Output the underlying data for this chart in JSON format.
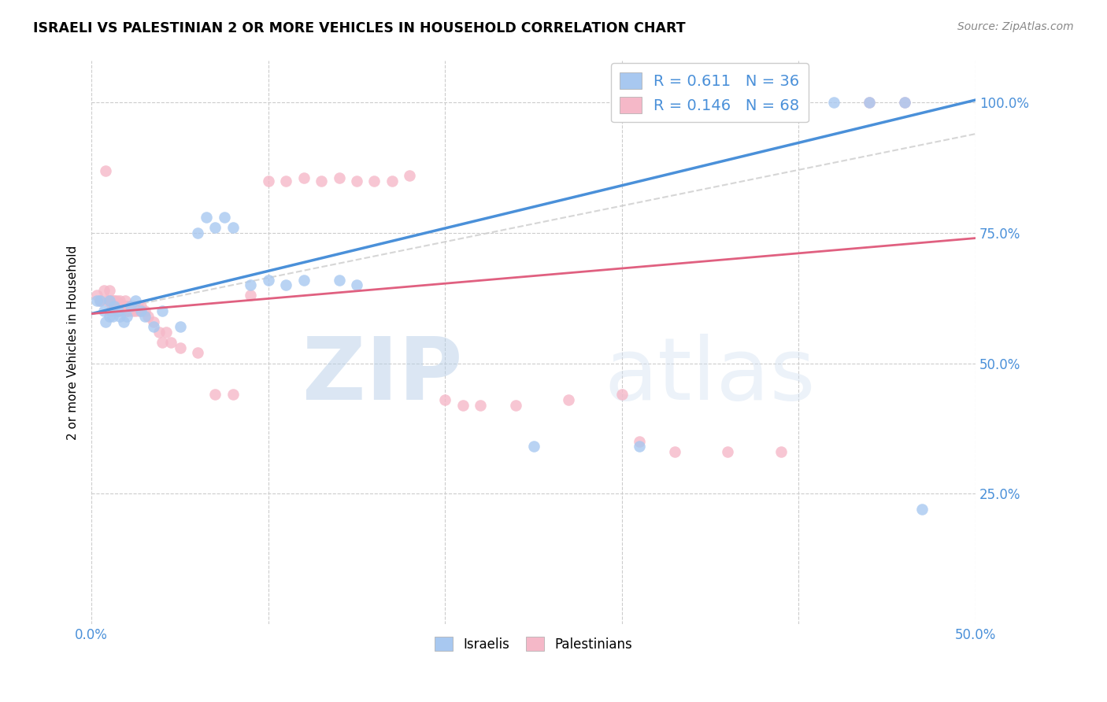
{
  "title": "ISRAELI VS PALESTINIAN 2 OR MORE VEHICLES IN HOUSEHOLD CORRELATION CHART",
  "source": "Source: ZipAtlas.com",
  "ylabel": "2 or more Vehicles in Household",
  "xlim": [
    0.0,
    0.5
  ],
  "ylim": [
    0.0,
    1.08
  ],
  "xticks": [
    0.0,
    0.1,
    0.2,
    0.3,
    0.4,
    0.5
  ],
  "xticklabels": [
    "0.0%",
    "",
    "",
    "",
    "",
    "50.0%"
  ],
  "yticks": [
    0.25,
    0.5,
    0.75,
    1.0
  ],
  "yticklabels": [
    "25.0%",
    "50.0%",
    "75.0%",
    "100.0%"
  ],
  "grid_color": "#cccccc",
  "background_color": "#ffffff",
  "israeli_color": "#a8c8f0",
  "palestinian_color": "#f5b8c8",
  "israeli_line_color": "#4a90d9",
  "palestinian_line_color": "#e06080",
  "dashed_color": "#cccccc",
  "legend_R_israeli": "0.611",
  "legend_N_israeli": "36",
  "legend_R_palestinian": "0.146",
  "legend_N_palestinian": "68",
  "watermark_zip": "ZIP",
  "watermark_atlas": "atlas",
  "axis_color": "#4a90d9",
  "israeli_line_x0": 0.0,
  "israeli_line_y0": 0.595,
  "israeli_line_x1": 0.5,
  "israeli_line_y1": 1.005,
  "palestinian_line_x0": 0.0,
  "palestinian_line_y0": 0.595,
  "palestinian_line_x1": 0.5,
  "palestinian_line_y1": 0.74,
  "dashed_line_x0": 0.0,
  "dashed_line_y0": 0.595,
  "dashed_line_x1": 0.5,
  "dashed_line_y1": 0.94,
  "israeli_x": [
    0.003,
    0.005,
    0.007,
    0.008,
    0.01,
    0.01,
    0.012,
    0.013,
    0.015,
    0.016,
    0.018,
    0.02,
    0.022,
    0.025,
    0.028,
    0.03,
    0.035,
    0.04,
    0.05,
    0.06,
    0.065,
    0.07,
    0.075,
    0.08,
    0.09,
    0.1,
    0.11,
    0.12,
    0.14,
    0.15,
    0.25,
    0.31,
    0.42,
    0.44,
    0.46,
    0.47
  ],
  "israeli_y": [
    0.62,
    0.62,
    0.6,
    0.58,
    0.59,
    0.62,
    0.59,
    0.61,
    0.6,
    0.59,
    0.58,
    0.59,
    0.61,
    0.62,
    0.6,
    0.59,
    0.57,
    0.6,
    0.57,
    0.75,
    0.78,
    0.76,
    0.78,
    0.76,
    0.65,
    0.66,
    0.65,
    0.66,
    0.66,
    0.65,
    0.34,
    0.34,
    1.0,
    1.0,
    1.0,
    0.22
  ],
  "palestinian_x": [
    0.003,
    0.005,
    0.007,
    0.008,
    0.009,
    0.01,
    0.01,
    0.011,
    0.011,
    0.012,
    0.012,
    0.013,
    0.013,
    0.014,
    0.014,
    0.015,
    0.015,
    0.016,
    0.016,
    0.017,
    0.017,
    0.018,
    0.018,
    0.019,
    0.019,
    0.02,
    0.02,
    0.021,
    0.022,
    0.023,
    0.024,
    0.025,
    0.026,
    0.027,
    0.028,
    0.03,
    0.032,
    0.035,
    0.038,
    0.04,
    0.042,
    0.045,
    0.05,
    0.06,
    0.07,
    0.08,
    0.09,
    0.1,
    0.11,
    0.12,
    0.13,
    0.14,
    0.15,
    0.16,
    0.17,
    0.18,
    0.2,
    0.21,
    0.22,
    0.24,
    0.27,
    0.3,
    0.31,
    0.33,
    0.36,
    0.39,
    0.44,
    0.46
  ],
  "palestinian_y": [
    0.63,
    0.62,
    0.64,
    0.87,
    0.62,
    0.62,
    0.64,
    0.62,
    0.6,
    0.61,
    0.62,
    0.61,
    0.62,
    0.6,
    0.62,
    0.6,
    0.615,
    0.61,
    0.62,
    0.6,
    0.61,
    0.61,
    0.6,
    0.61,
    0.62,
    0.6,
    0.61,
    0.6,
    0.61,
    0.6,
    0.61,
    0.6,
    0.61,
    0.6,
    0.61,
    0.6,
    0.59,
    0.58,
    0.56,
    0.54,
    0.56,
    0.54,
    0.53,
    0.52,
    0.44,
    0.44,
    0.63,
    0.85,
    0.85,
    0.855,
    0.85,
    0.855,
    0.85,
    0.85,
    0.85,
    0.86,
    0.43,
    0.42,
    0.42,
    0.42,
    0.43,
    0.44,
    0.35,
    0.33,
    0.33,
    0.33,
    1.0,
    1.0
  ]
}
